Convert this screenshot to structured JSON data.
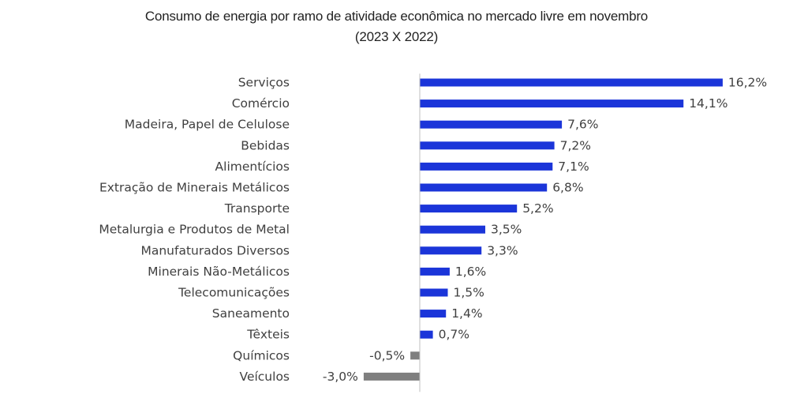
{
  "chart_data": {
    "type": "bar",
    "orientation": "horizontal",
    "title": "Consumo de energia por ramo de atividade econômica no mercado livre em novembro",
    "subtitle": "(2023 X 2022)",
    "categories": [
      "Serviços",
      "Comércio",
      "Madeira, Papel de Celulose",
      "Bebidas",
      "Alimentícios",
      "Extração de Minerais Metálicos",
      "Transporte",
      "Metalurgia e Produtos de Metal",
      "Manufaturados Diversos",
      "Minerais Não-Metálicos",
      "Telecomunicações",
      "Saneamento",
      "Têxteis",
      "Químicos",
      "Veículos"
    ],
    "values": [
      16.2,
      14.1,
      7.6,
      7.2,
      7.1,
      6.8,
      5.2,
      3.5,
      3.3,
      1.6,
      1.5,
      1.4,
      0.7,
      -0.5,
      -3.0
    ],
    "data_labels": [
      "16,2%",
      "14,1%",
      "7,6%",
      "7,2%",
      "7,1%",
      "6,8%",
      "5,2%",
      "3,5%",
      "3,3%",
      "1,6%",
      "1,5%",
      "1,4%",
      "0,7%",
      "-0,5%",
      "-3,0%"
    ],
    "xlabel": "",
    "ylabel": "",
    "xlim": [
      -3.0,
      16.2
    ],
    "grid": false,
    "legend": "none",
    "colors": {
      "positive": "#1B35D9",
      "negative": "#7F7F7F",
      "axis": "#BFBFBF",
      "text": "#404040"
    }
  }
}
